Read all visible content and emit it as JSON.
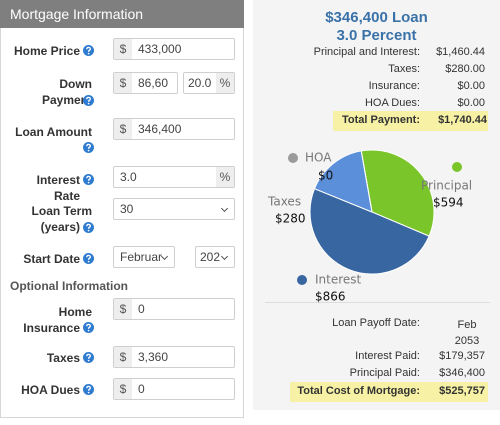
{
  "header": {
    "title": "Mortgage Information"
  },
  "form": {
    "fields": [
      {
        "label": [
          "Home Price"
        ],
        "prefix": "$",
        "value": "433,000"
      },
      {
        "label": [
          "Down Payment"
        ],
        "prefix": "$",
        "value": "86,60",
        "value2": "20.0",
        "suffix": "%"
      },
      {
        "label": [
          "Loan Amount"
        ],
        "prefix": "$",
        "value": "346,400"
      },
      {
        "label": [
          "Interest Rate"
        ],
        "value": "3.0",
        "suffix": "%"
      },
      {
        "label": [
          "Loan Term",
          "(years)"
        ],
        "value": "30"
      },
      {
        "label": [
          "Start Date"
        ],
        "value": "Februar",
        "value2": "202"
      },
      {
        "label": [
          "Home",
          "Insurance"
        ],
        "prefix": "$",
        "value": "0"
      },
      {
        "label": [
          "Taxes"
        ],
        "prefix": "$",
        "value": "3,360"
      },
      {
        "label": [
          "HOA Dues"
        ],
        "prefix": "$",
        "value": "0"
      }
    ],
    "section": "Optional Information"
  },
  "results": {
    "title": "$346,400 Loan",
    "subtitle": "3.0 Percent",
    "monthly": [
      [
        "Principal and Interest:",
        "$1,460.44"
      ],
      [
        "Taxes:",
        "$280.00"
      ],
      [
        "Insurance:",
        "$0.00"
      ],
      [
        "HOA Dues:",
        "$0.00"
      ]
    ],
    "total": [
      "Total Payment:",
      "$1,740.44"
    ],
    "summary": [
      [
        "Loan Payoff Date:",
        "Feb 2053"
      ],
      [
        "Interest Paid:",
        "$179,357"
      ],
      [
        "Principal Paid:",
        "$346,400"
      ]
    ],
    "total_cost": [
      "Total Cost of Mortgage:",
      "$525,757"
    ]
  },
  "chart_data": {
    "type": "pie",
    "categories": [
      "Principal",
      "Interest",
      "Taxes",
      "HOA"
    ],
    "values": [
      594,
      866,
      280,
      0
    ],
    "value_labels": [
      "$594",
      "$866",
      "$280",
      "$0"
    ],
    "colors": [
      "#7ac52a",
      "#3866a0",
      "#5b8fd9",
      "#9a9a9a"
    ]
  }
}
